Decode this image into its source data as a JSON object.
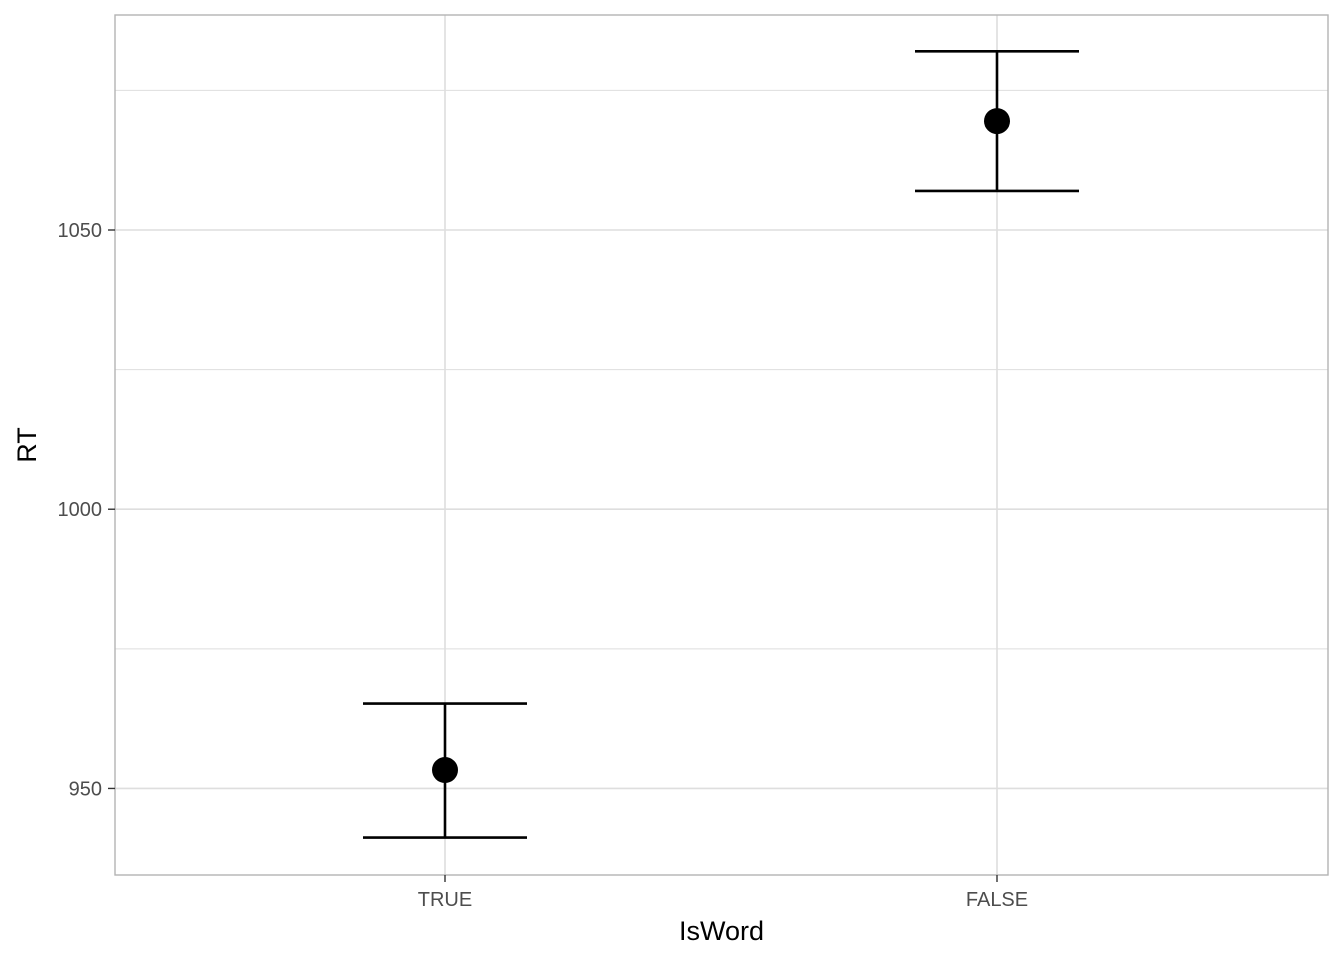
{
  "chart_data": {
    "type": "scatter",
    "title": "",
    "xlabel": "IsWord",
    "ylabel": "RT",
    "categories": [
      "TRUE",
      "FALSE"
    ],
    "series": [
      {
        "points": [
          {
            "x": "TRUE",
            "y": 953.3,
            "ymin": 941.2,
            "ymax": 965.2
          },
          {
            "x": "FALSE",
            "y": 1069.5,
            "ymin": 1057.0,
            "ymax": 1082.0
          }
        ]
      }
    ],
    "ylim": [
      934.5,
      1088.5
    ],
    "yticks": [
      950,
      1000,
      1050
    ],
    "yticks_labels": [
      "950",
      "1000",
      "1050"
    ],
    "grid": true,
    "legend": "none",
    "colors": {
      "marks": "#000000",
      "grid": "#dedede",
      "panel_border": "#b3b3b3"
    }
  }
}
